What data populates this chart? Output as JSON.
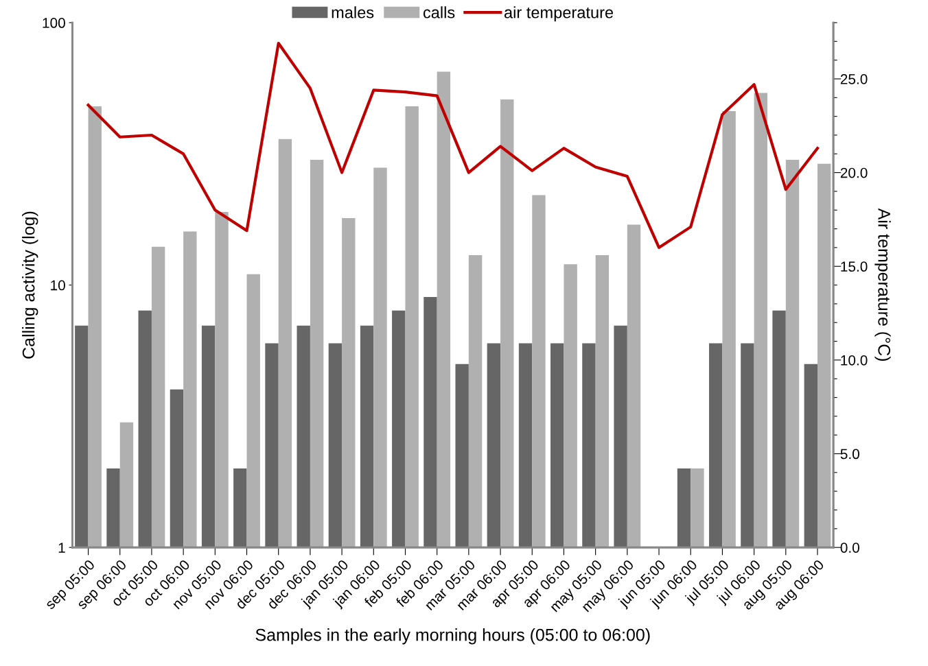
{
  "chart_data": {
    "type": "bar",
    "xlabel": "Samples in the early morning hours (05:00 to 06:00)",
    "ylabel": "Calling activity (log)",
    "y2label": "Air temperature (°C)",
    "categories": [
      "sep 05:00",
      "sep 06:00",
      "oct 05:00",
      "oct 06:00",
      "nov 05:00",
      "nov 06:00",
      "dec 05:00",
      "dec 06:00",
      "jan 05:00",
      "jan 06:00",
      "feb 05:00",
      "feb 06:00",
      "mar 05:00",
      "mar 06:00",
      "apr 05:00",
      "apr 06:00",
      "may 05:00",
      "may 06:00",
      "jun 05:00",
      "jun 06:00",
      "jul 05:00",
      "jul 06:00",
      "aug 05:00",
      "aug 06:00"
    ],
    "series": [
      {
        "name": "males",
        "color": "#666666",
        "values": [
          7,
          2,
          8,
          4,
          7,
          2,
          6,
          7,
          6,
          7,
          8,
          9,
          5,
          6,
          6,
          6,
          6,
          7,
          null,
          2,
          6,
          6,
          8,
          5
        ]
      },
      {
        "name": "calls",
        "color": "#b0b0b0",
        "values": [
          48,
          3,
          14,
          16,
          19,
          11,
          36,
          30,
          18,
          28,
          48,
          65,
          13,
          51,
          22,
          12,
          13,
          17,
          null,
          2,
          46,
          54,
          30,
          29
        ]
      },
      {
        "name": "air temperature",
        "type": "line",
        "axis": "y2",
        "color": "#c00000",
        "values": [
          23.6,
          21.9,
          22.0,
          21.0,
          18.0,
          16.9,
          26.9,
          24.5,
          20.0,
          24.4,
          24.3,
          24.1,
          20.0,
          21.4,
          20.1,
          21.3,
          20.3,
          19.8,
          16.0,
          17.1,
          23.1,
          24.7,
          19.1,
          21.3
        ]
      }
    ],
    "log": "y",
    "ylim": [
      1,
      100
    ],
    "yticks": [
      1,
      10,
      100
    ],
    "y2lim": [
      0,
      28
    ],
    "y2ticks": [
      {
        "value": 0,
        "label": "0.0"
      },
      {
        "value": 1,
        "label": null
      },
      {
        "value": 2,
        "label": null
      },
      {
        "value": 3,
        "label": null
      },
      {
        "value": 4,
        "label": null
      },
      {
        "value": 5,
        "label": "5.0"
      },
      {
        "value": 6,
        "label": null
      },
      {
        "value": 7,
        "label": null
      },
      {
        "value": 8,
        "label": null
      },
      {
        "value": 9,
        "label": null
      },
      {
        "value": 10,
        "label": "10.0"
      },
      {
        "value": 11,
        "label": null
      },
      {
        "value": 12,
        "label": null
      },
      {
        "value": 13,
        "label": null
      },
      {
        "value": 14,
        "label": null
      },
      {
        "value": 15,
        "label": "15.0"
      },
      {
        "value": 16,
        "label": null
      },
      {
        "value": 17,
        "label": null
      },
      {
        "value": 18,
        "label": null
      },
      {
        "value": 19,
        "label": null
      },
      {
        "value": 20,
        "label": "20.0"
      },
      {
        "value": 21,
        "label": null
      },
      {
        "value": 22,
        "label": null
      },
      {
        "value": 23,
        "label": null
      },
      {
        "value": 24,
        "label": null
      },
      {
        "value": 25,
        "label": "25.0"
      },
      {
        "value": 26,
        "label": null
      },
      {
        "value": 27,
        "label": null
      },
      {
        "value": 28,
        "label": null
      }
    ],
    "grid": false,
    "legend": "top"
  }
}
